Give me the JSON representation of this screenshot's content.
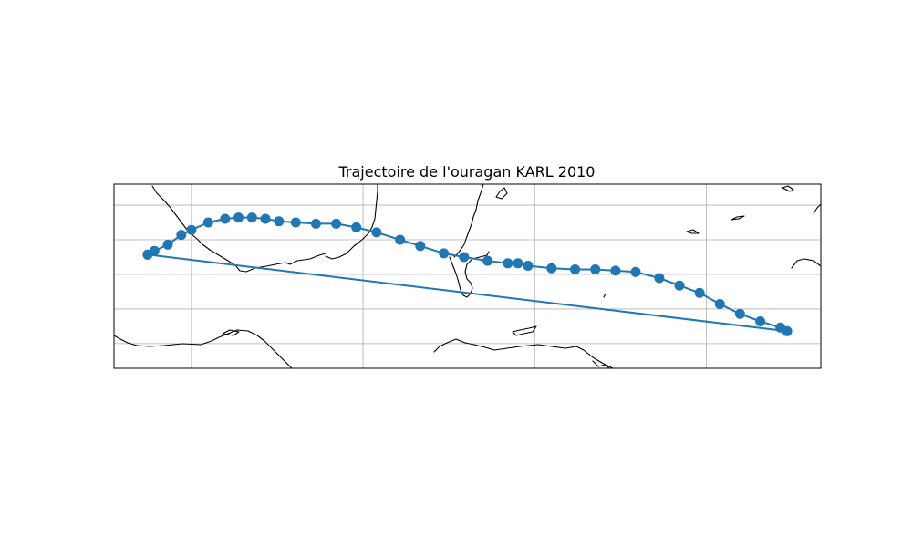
{
  "title": "Trajectoire de l'ouragan KARL 2010",
  "colors": {
    "track": "#1f77b4",
    "coastline": "#000000",
    "grid": "#b0b0b0",
    "background": "#ffffff"
  },
  "chart_data": {
    "type": "map-track",
    "title": "Trajectoire de l'ouragan KARL 2010",
    "xlabel": "",
    "ylabel": "",
    "grid": true,
    "xlim": [
      -99.5,
      -78.5
    ],
    "ylim": [
      14.3,
      21.75
    ],
    "grid_lon": [
      -97.2,
      -92.1,
      -87.0,
      -81.9
    ],
    "grid_lat": [
      15.3,
      16.7,
      18.1,
      19.5,
      20.9
    ],
    "series": [
      {
        "lon": [
          -98.5,
          -98.3,
          -97.9,
          -97.5,
          -97.2,
          -96.7,
          -96.2,
          -95.8,
          -95.4,
          -95.0,
          -94.6,
          -94.1,
          -93.5,
          -92.9,
          -92.3,
          -91.7,
          -91.0,
          -90.4,
          -89.7,
          -89.1,
          -88.4,
          -87.8,
          -87.5,
          -87.2,
          -86.5,
          -85.8,
          -85.2,
          -84.6,
          -84.0,
          -83.3,
          -82.7,
          -82.1,
          -81.5,
          -80.9,
          -80.3,
          -79.7,
          -79.5,
          -98.5
        ],
        "lat": [
          18.9,
          19.05,
          19.3,
          19.7,
          19.9,
          20.2,
          20.35,
          20.4,
          20.4,
          20.35,
          20.25,
          20.2,
          20.15,
          20.15,
          20.0,
          19.8,
          19.5,
          19.25,
          18.95,
          18.8,
          18.65,
          18.55,
          18.55,
          18.45,
          18.35,
          18.3,
          18.3,
          18.25,
          18.2,
          17.95,
          17.65,
          17.35,
          16.9,
          16.5,
          16.2,
          15.95,
          15.8,
          18.9
        ]
      }
    ]
  }
}
